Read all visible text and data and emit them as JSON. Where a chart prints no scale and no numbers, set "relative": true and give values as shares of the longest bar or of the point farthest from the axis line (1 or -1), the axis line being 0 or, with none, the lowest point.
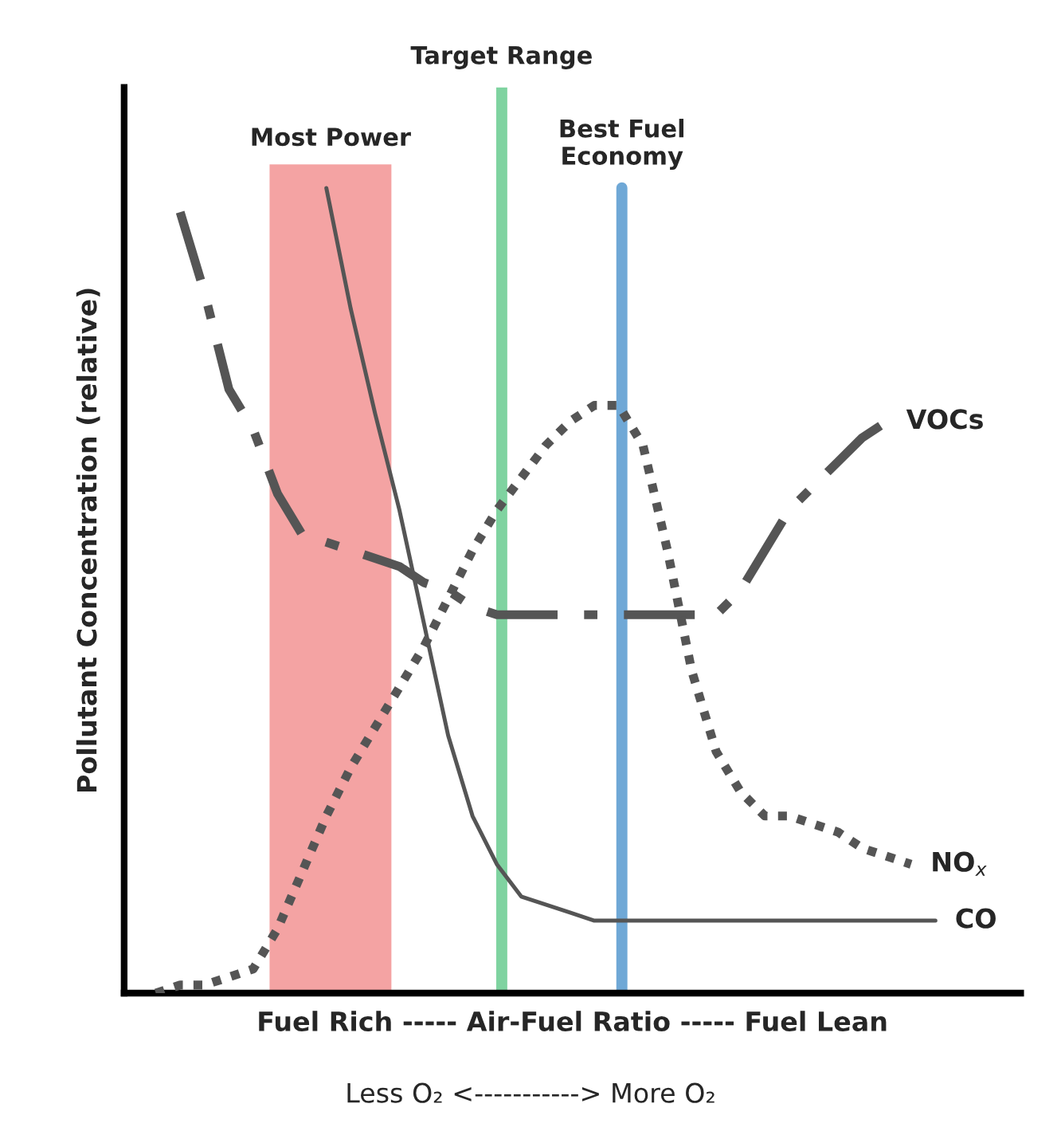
{
  "chart_data": {
    "type": "line",
    "relative": true,
    "ylabel": "Pollutant Concentration (relative)",
    "xlabel": "Fuel Rich ----- Air-Fuel Ratio ----- Fuel Lean",
    "annotations": [
      "Less O₂ <-----------> More O₂",
      "Most Power",
      "Target Range",
      "Best Fuel\nEconomy"
    ],
    "categories": [
      null,
      null,
      null,
      null,
      null,
      null,
      null,
      null,
      null,
      null,
      null,
      null,
      null,
      null,
      null,
      null,
      null,
      null,
      null,
      null,
      null,
      null,
      null,
      null,
      null,
      null,
      null,
      null,
      null,
      null,
      null,
      null,
      null
    ],
    "series": [
      {
        "name": "VOCs",
        "color": "#555555",
        "line_style": "dashdot",
        "values": [
          null,
          0.97,
          0.87,
          0.75,
          0.7,
          0.62,
          0.57,
          0.56,
          0.55,
          0.54,
          0.53,
          0.51,
          0.5,
          0.48,
          0.47,
          0.47,
          0.47,
          0.47,
          0.47,
          0.47,
          0.47,
          0.47,
          0.47,
          0.47,
          0.5,
          0.55,
          0.6,
          0.63,
          0.66,
          0.69,
          0.71,
          null,
          null
        ]
      },
      {
        "name": "NO$_{x}$",
        "color": "#555555",
        "line_style": "dotted",
        "values": [
          0.0,
          0.01,
          0.01,
          0.02,
          0.03,
          0.08,
          0.15,
          0.22,
          0.28,
          0.33,
          0.38,
          0.43,
          0.49,
          0.55,
          0.6,
          0.64,
          0.68,
          0.71,
          0.73,
          0.73,
          0.68,
          0.55,
          0.4,
          0.3,
          0.25,
          0.22,
          0.22,
          0.21,
          0.2,
          0.18,
          0.17,
          0.16,
          null
        ]
      },
      {
        "name": "CO",
        "color": "#555555",
        "line_style": "solid",
        "values": [
          null,
          null,
          null,
          null,
          null,
          null,
          null,
          1.0,
          0.85,
          0.72,
          0.6,
          0.46,
          0.32,
          0.22,
          0.16,
          0.12,
          0.11,
          0.1,
          0.09,
          0.09,
          0.09,
          0.09,
          0.09,
          0.09,
          0.09,
          0.09,
          0.09,
          0.09,
          0.09,
          0.09,
          0.09,
          0.09,
          0.09
        ]
      }
    ],
    "legend": false
  }
}
